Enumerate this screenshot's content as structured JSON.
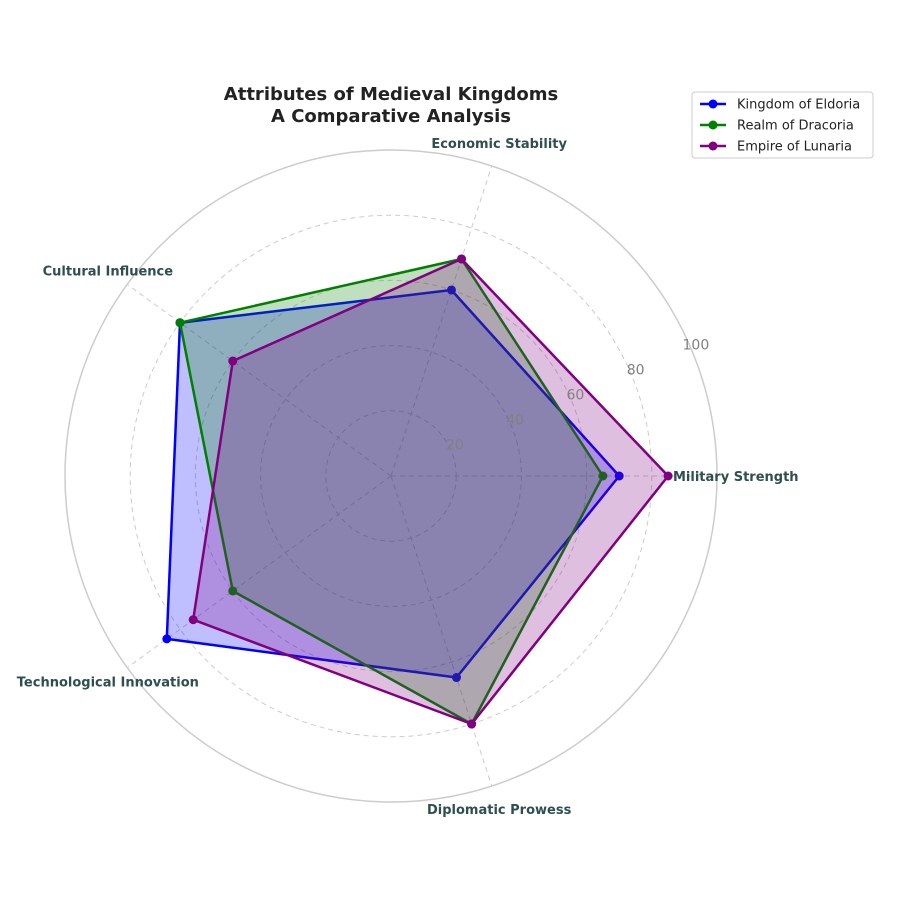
{
  "chart_data": {
    "type": "radar",
    "title": "Attributes of Medieval Kingdoms",
    "subtitle": "A Comparative Analysis",
    "categories": [
      "Military Strength",
      "Economic Stability",
      "Cultural Influence",
      "Technological Innovation",
      "Diplomatic Prowess"
    ],
    "rlim": [
      0,
      100
    ],
    "r_ticks": [
      20,
      40,
      60,
      80,
      100
    ],
    "grid": true,
    "legend_position": "top-right",
    "series": [
      {
        "name": "Kingdom of Eldoria",
        "color": "#0000ff",
        "values": [
          70,
          60,
          80,
          85,
          65
        ]
      },
      {
        "name": "Realm of Dracoria",
        "color": "#008000",
        "values": [
          65,
          70,
          80,
          60,
          80
        ]
      },
      {
        "name": "Empire of Lunaria",
        "color": "#800080",
        "values": [
          85,
          70,
          60,
          75,
          80
        ]
      }
    ]
  }
}
